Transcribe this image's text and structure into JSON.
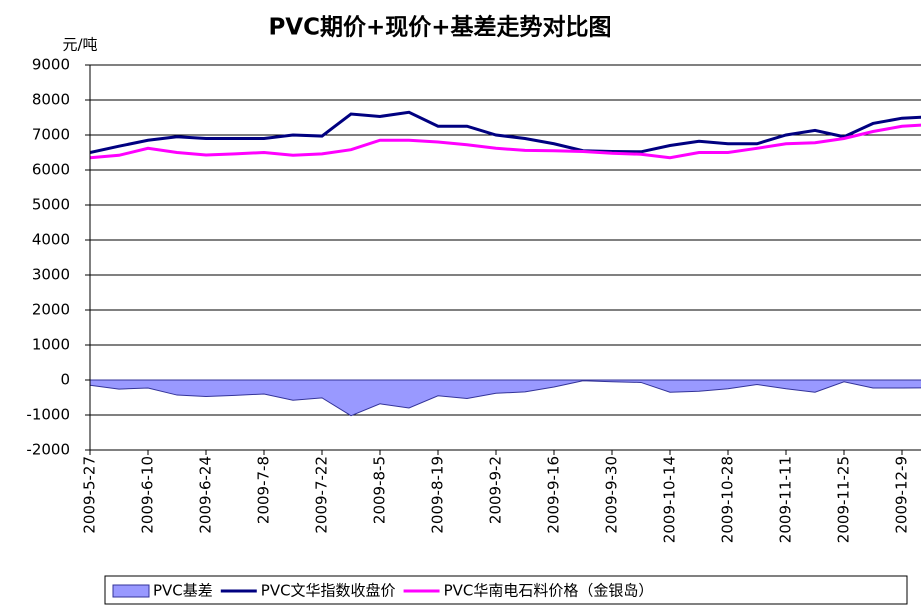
{
  "chart_data": {
    "type": "line",
    "title": "PVC期价+现价+基差走势对比图",
    "y_label": "元/吨",
    "categories": [
      "2009-5-27",
      null,
      "2009-6-10",
      null,
      "2009-6-24",
      null,
      "2009-7-8",
      null,
      "2009-7-22",
      null,
      "2009-8-5",
      null,
      "2009-8-19",
      null,
      "2009-9-2",
      null,
      "2009-9-16",
      null,
      "2009-9-30",
      null,
      "2009-10-14",
      null,
      "2009-10-28",
      null,
      "2009-11-11",
      null,
      "2009-11-25",
      null,
      "2009-12-9",
      null
    ],
    "series": [
      {
        "name": "PVC基差",
        "type": "area",
        "color": "#9999ff",
        "values": [
          -150,
          -260,
          -230,
          -430,
          -470,
          -440,
          -400,
          -580,
          -510,
          -1020,
          -680,
          -800,
          -450,
          -530,
          -380,
          -340,
          -200,
          -20,
          -50,
          -70,
          -350,
          -320,
          -250,
          -130,
          -250,
          -350,
          -50,
          -230,
          -230,
          -220
        ]
      },
      {
        "name": "PVC文华指数收盘价",
        "type": "line",
        "color": "#000080",
        "values": [
          6500,
          6680,
          6850,
          6950,
          6900,
          6900,
          6900,
          7000,
          6970,
          7600,
          7530,
          7650,
          7250,
          7250,
          7000,
          6900,
          6750,
          6550,
          6530,
          6520,
          6700,
          6820,
          6750,
          6750,
          7000,
          7130,
          6950,
          7330,
          7480,
          7520
        ]
      },
      {
        "name": "PVC华南电石料价格（金银岛）",
        "type": "line",
        "color": "#ff00ff",
        "values": [
          6350,
          6420,
          6620,
          6500,
          6430,
          6460,
          6500,
          6420,
          6460,
          6580,
          6850,
          6850,
          6800,
          6720,
          6620,
          6560,
          6550,
          6530,
          6480,
          6450,
          6350,
          6500,
          6500,
          6620,
          6750,
          6780,
          6900,
          7100,
          7250,
          7300
        ]
      }
    ],
    "ylim": [
      -2000,
      9000
    ],
    "yticks": [
      -2000,
      -1000,
      0,
      1000,
      2000,
      3000,
      4000,
      5000,
      6000,
      7000,
      8000,
      9000
    ],
    "grid": true,
    "legend": "bottom"
  }
}
